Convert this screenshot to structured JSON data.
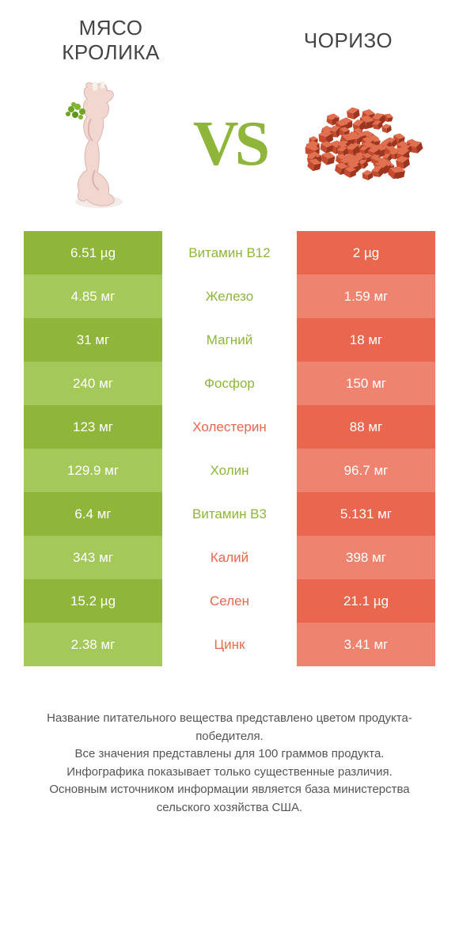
{
  "header": {
    "left_title": "МЯСО КРОЛИКА",
    "right_title": "ЧОРИЗО",
    "vs": "VS"
  },
  "colors": {
    "green": "#8fb53a",
    "green_alt": "#a4c85a",
    "red": "#e8674e",
    "red_alt": "#ee8470",
    "bg": "#ffffff",
    "text": "#444444"
  },
  "rows": [
    {
      "left": "6.51 µg",
      "mid": "Витамин B12",
      "right": "2 µg",
      "winner": "green"
    },
    {
      "left": "4.85 мг",
      "mid": "Железо",
      "right": "1.59 мг",
      "winner": "green"
    },
    {
      "left": "31 мг",
      "mid": "Магний",
      "right": "18 мг",
      "winner": "green"
    },
    {
      "left": "240 мг",
      "mid": "Фосфор",
      "right": "150 мг",
      "winner": "green"
    },
    {
      "left": "123 мг",
      "mid": "Холестерин",
      "right": "88 мг",
      "winner": "red"
    },
    {
      "left": "129.9 мг",
      "mid": "Холин",
      "right": "96.7 мг",
      "winner": "green"
    },
    {
      "left": "6.4 мг",
      "mid": "Витамин B3",
      "right": "5.131 мг",
      "winner": "green"
    },
    {
      "left": "343 мг",
      "mid": "Калий",
      "right": "398 мг",
      "winner": "red"
    },
    {
      "left": "15.2 µg",
      "mid": "Селен",
      "right": "21.1 µg",
      "winner": "red"
    },
    {
      "left": "2.38 мг",
      "mid": "Цинк",
      "right": "3.41 мг",
      "winner": "red"
    }
  ],
  "footer": {
    "line1": "Название питательного вещества представлено цветом продукта-победителя.",
    "line2": "Все значения представлены для 100 граммов продукта.",
    "line3": "Инфографика показывает только существенные различия.",
    "line4": "Основным источником информации является база министерства сельского хозяйства США."
  },
  "image_style": {
    "rabbit_body": "#f2d6d0",
    "rabbit_shadow": "#d9b5ae",
    "rabbit_bone": "#f5f0e8",
    "herb": "#6fa520",
    "chorizo_fill": "#c54a2e",
    "chorizo_light": "#e07050",
    "chorizo_dark": "#9c3520"
  }
}
